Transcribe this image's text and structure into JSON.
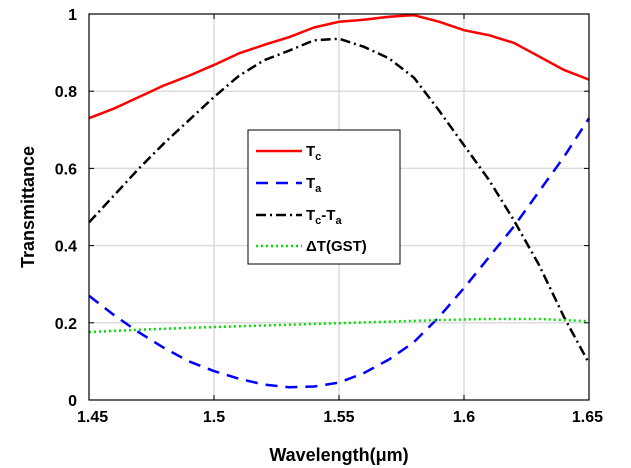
{
  "chart_data": {
    "type": "line",
    "title": "",
    "xlabel": "Wavelength(μm)",
    "ylabel": "Transmittance",
    "xlim": [
      1.45,
      1.65
    ],
    "ylim": [
      0,
      1
    ],
    "xticks": [
      1.45,
      1.5,
      1.55,
      1.6,
      1.65
    ],
    "yticks": [
      0,
      0.2,
      0.4,
      0.6,
      0.8,
      1
    ],
    "xtick_labels": [
      "1.45",
      "1.5",
      "1.55",
      "1.6",
      "1.65"
    ],
    "ytick_labels": [
      "0",
      "0.2",
      "0.4",
      "0.6",
      "0.8",
      "1"
    ],
    "grid": true,
    "legend_position": "center",
    "series": [
      {
        "name": "Tc",
        "label_main": "T",
        "label_sub": "c",
        "color": "#ff0000",
        "style": "solid",
        "x": [
          1.45,
          1.46,
          1.47,
          1.48,
          1.49,
          1.5,
          1.51,
          1.52,
          1.53,
          1.54,
          1.55,
          1.56,
          1.57,
          1.58,
          1.59,
          1.6,
          1.61,
          1.62,
          1.63,
          1.64,
          1.65
        ],
        "y": [
          0.73,
          0.755,
          0.785,
          0.815,
          0.84,
          0.868,
          0.898,
          0.92,
          0.94,
          0.965,
          0.98,
          0.985,
          0.993,
          0.997,
          0.98,
          0.958,
          0.945,
          0.925,
          0.89,
          0.855,
          0.83
        ]
      },
      {
        "name": "Ta",
        "label_main": "T",
        "label_sub": "a",
        "color": "#0000ff",
        "style": "dash",
        "x": [
          1.45,
          1.46,
          1.47,
          1.48,
          1.49,
          1.5,
          1.51,
          1.52,
          1.53,
          1.54,
          1.55,
          1.56,
          1.57,
          1.58,
          1.59,
          1.6,
          1.61,
          1.62,
          1.63,
          1.64,
          1.65
        ],
        "y": [
          0.27,
          0.22,
          0.175,
          0.135,
          0.1,
          0.075,
          0.055,
          0.04,
          0.033,
          0.035,
          0.045,
          0.07,
          0.105,
          0.15,
          0.215,
          0.29,
          0.37,
          0.45,
          0.54,
          0.63,
          0.73
        ]
      },
      {
        "name": "Tc-Ta",
        "label_main": "T",
        "label_sub": "c",
        "label_mid": "-T",
        "label_sub2": "a",
        "color": "#000000",
        "style": "dashdot",
        "x": [
          1.45,
          1.46,
          1.47,
          1.48,
          1.49,
          1.5,
          1.51,
          1.52,
          1.53,
          1.54,
          1.55,
          1.56,
          1.57,
          1.58,
          1.59,
          1.6,
          1.61,
          1.62,
          1.63,
          1.64,
          1.65
        ],
        "y": [
          0.46,
          0.53,
          0.6,
          0.665,
          0.725,
          0.785,
          0.84,
          0.88,
          0.905,
          0.932,
          0.936,
          0.915,
          0.885,
          0.835,
          0.75,
          0.66,
          0.57,
          0.465,
          0.35,
          0.215,
          0.095
        ]
      },
      {
        "name": "ΔT(GST)",
        "label_main": "ΔT(GST)",
        "color": "#00dd00",
        "style": "dot",
        "x": [
          1.45,
          1.47,
          1.49,
          1.51,
          1.53,
          1.55,
          1.57,
          1.59,
          1.61,
          1.63,
          1.65
        ],
        "y": [
          0.176,
          0.182,
          0.187,
          0.191,
          0.195,
          0.199,
          0.203,
          0.207,
          0.21,
          0.21,
          0.204
        ]
      }
    ]
  }
}
